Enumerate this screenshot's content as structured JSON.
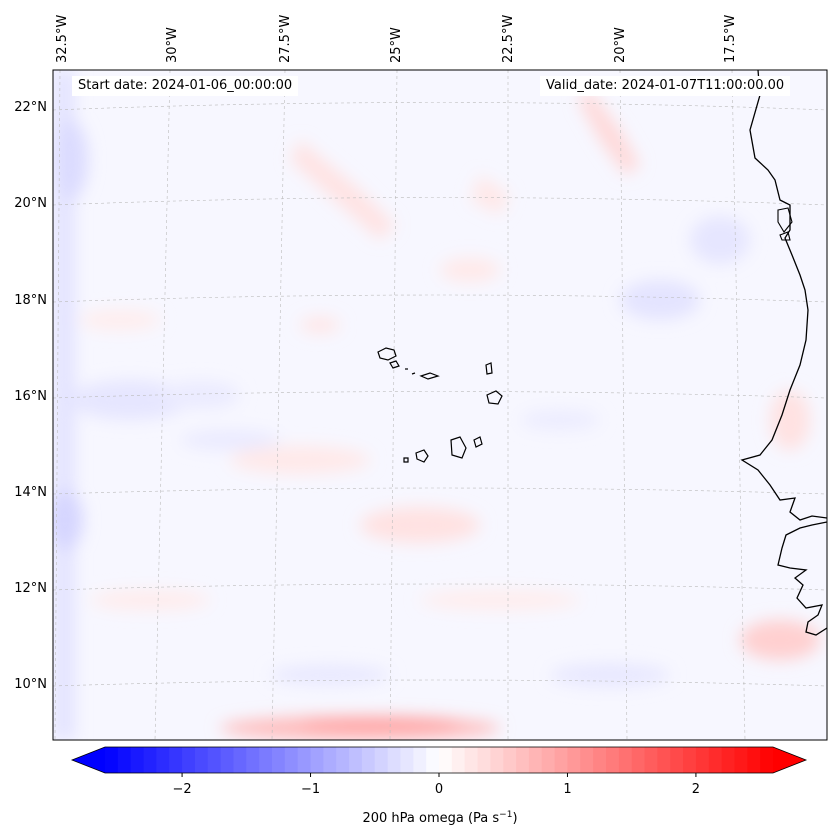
{
  "map": {
    "start_date": "Start date: 2024-01-06_00:00:00",
    "valid_date": "Valid_date: 2024-01-07T11:00:00.00",
    "lon_labels": [
      "32.5°W",
      "30°W",
      "27.5°W",
      "25°W",
      "22.5°W",
      "20°W",
      "17.5°W"
    ],
    "lat_labels": [
      "22°N",
      "20°N",
      "18°N",
      "16°N",
      "14°N",
      "12°N",
      "10°N"
    ],
    "field_variable": "200 hPa omega",
    "gridlines": true,
    "coastline_color": "#000000"
  },
  "colorbar": {
    "label": "200 hPa omega (Pa s",
    "label_sup": "−1",
    "label_close": ")",
    "ticks": [
      "−2",
      "−1",
      "0",
      "1",
      "2"
    ],
    "range": [
      -2.6,
      2.6
    ],
    "tick_values": [
      -2,
      -1,
      0,
      1,
      2
    ],
    "colormap": "bwr",
    "low_color": "#0000ff",
    "mid_color": "#ffffff",
    "high_color": "#ff0000",
    "extend": "both"
  }
}
